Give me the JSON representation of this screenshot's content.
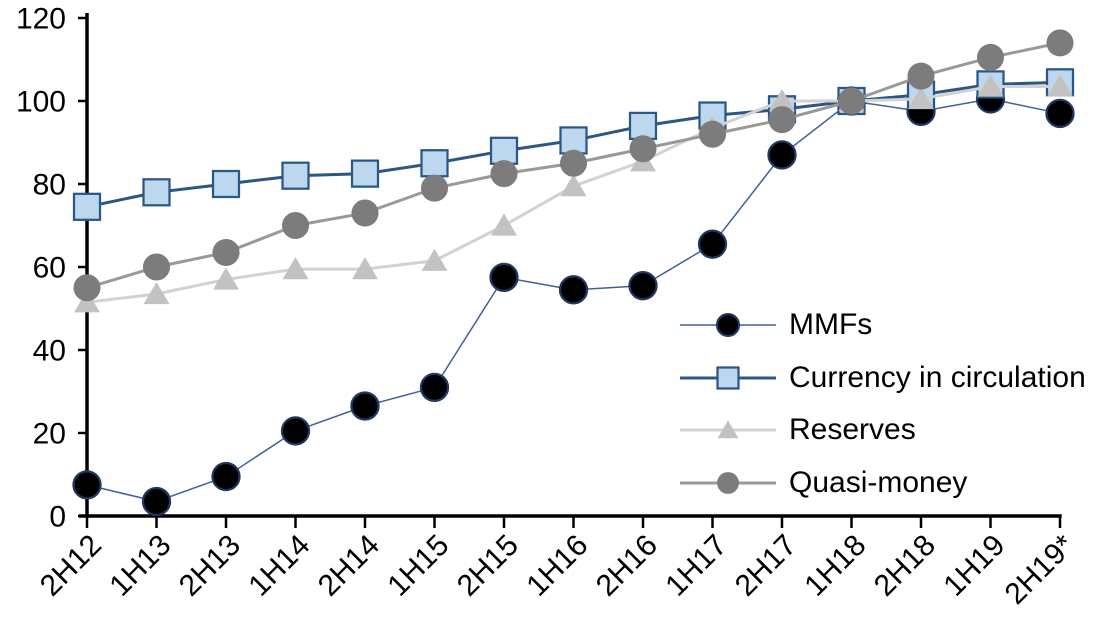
{
  "chart_data": {
    "type": "line",
    "title": "",
    "xlabel": "",
    "ylabel": "",
    "categories": [
      "2H12",
      "1H13",
      "2H13",
      "1H14",
      "2H14",
      "1H15",
      "2H15",
      "1H16",
      "2H16",
      "1H17",
      "2H17",
      "1H18",
      "2H18",
      "1H19",
      "2H19*"
    ],
    "series": [
      {
        "name": "MMFs",
        "marker": "circle",
        "marker_fill": "#000000",
        "marker_stroke": "#1F3864",
        "line_color": "#41609B",
        "line_width": 1.5,
        "values": [
          7.5,
          3.5,
          9.5,
          20.5,
          26.5,
          31,
          57.5,
          54.5,
          55.5,
          65.5,
          87,
          100,
          97.5,
          100.5,
          97
        ]
      },
      {
        "name": "Currency in circulation",
        "marker": "square",
        "marker_fill": "#BDD7EE",
        "marker_stroke": "#2A5784",
        "line_color": "#2A5784",
        "line_width": 3,
        "values": [
          74.5,
          78,
          80,
          82,
          82.5,
          85,
          88,
          90.5,
          94,
          96.5,
          98,
          100,
          101.5,
          104,
          104.5
        ]
      },
      {
        "name": "Reserves",
        "marker": "triangle",
        "marker_fill": "#C2C2C2",
        "marker_stroke": "none",
        "line_color": "#D2D2D2",
        "line_width": 3,
        "values": [
          51.5,
          53.5,
          57,
          59.5,
          59.5,
          61.5,
          70,
          79.5,
          85.5,
          93.5,
          100,
          100,
          100.5,
          103.5,
          103.5
        ]
      },
      {
        "name": "Quasi-money",
        "marker": "circle",
        "marker_fill": "#7C7C7C",
        "marker_stroke": "none",
        "line_color": "#999999",
        "line_width": 3,
        "values": [
          55,
          60,
          63.5,
          70,
          73,
          79,
          82.5,
          85,
          88.5,
          92,
          95.5,
          100,
          106,
          110.5,
          114
        ]
      }
    ],
    "ylim": [
      0,
      120
    ],
    "y_tick_step": 20,
    "y_tick_labels": [
      "0",
      "20",
      "40",
      "60",
      "80",
      "100",
      "120"
    ],
    "grid": "off",
    "legend_position": "inside-right",
    "axis_color": "#000000",
    "tick_label_color": "#000000",
    "x_tick_label_rotation_deg": -45
  }
}
